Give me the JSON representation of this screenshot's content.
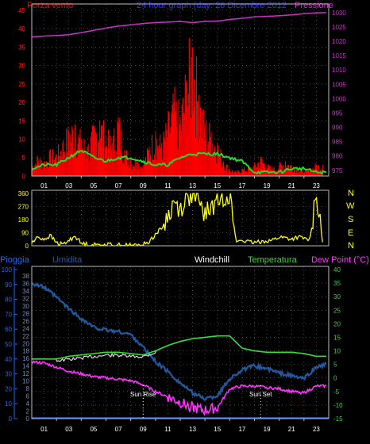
{
  "header": {
    "left_label": "Forza vento",
    "center_label": "24 hour graph (day: 26 Dicembre 2012",
    "right_label": "Pressione"
  },
  "wind_dir_letters": [
    "N",
    "W",
    "S",
    "E",
    "N"
  ],
  "bottom_header": {
    "pioggia": "Pioggia",
    "umidita": "Umidita",
    "windchill": "Windchill",
    "temperatura": "Temperatura",
    "dewpoint": "Dew Point (°C)"
  },
  "annotations": {
    "sunrise": "Sun Rise",
    "sunset": "Sun Set"
  },
  "colors": {
    "wind": "#ff0000",
    "wind_avg": "#22dd22",
    "pressure": "#cc33cc",
    "direction": "#ffff00",
    "humidity": "#225aa0",
    "temperature": "#33dd33",
    "windchill": "#ffffff",
    "dewpoint": "#ff33ff",
    "rain": "#2266ff"
  },
  "chart_data": [
    {
      "type": "bar",
      "title": "",
      "series": [
        {
          "name": "Forza vento",
          "x": [
            0,
            0.5,
            1,
            1.5,
            2,
            2.5,
            3,
            3.5,
            4,
            4.5,
            5,
            5.5,
            6,
            6.5,
            7,
            7.5,
            8,
            8.5,
            9,
            9.5,
            10,
            10.5,
            11,
            11.5,
            12,
            12.5,
            13,
            13.5,
            14,
            14.5,
            15,
            15.5,
            16,
            16.5,
            17,
            17.5,
            18,
            18.5,
            19,
            19.5,
            20,
            20.5,
            21,
            21.5,
            22,
            22.5,
            23,
            23.5
          ],
          "values": [
            3,
            5,
            4,
            6,
            6,
            9,
            12,
            14,
            10,
            8,
            12,
            15,
            11,
            9,
            16,
            7,
            5,
            4,
            3,
            8,
            12,
            9,
            14,
            20,
            16,
            26,
            35,
            22,
            14,
            12,
            9,
            4,
            2,
            1,
            2,
            2,
            3,
            5,
            3,
            2,
            3,
            4,
            3,
            2,
            1,
            2,
            3,
            3
          ]
        },
        {
          "name": "",
          "x": [
            0,
            1,
            2,
            3,
            4,
            5,
            6,
            7,
            8,
            9,
            10,
            11,
            12,
            13,
            14,
            15,
            16,
            17,
            18,
            19,
            20,
            21,
            22,
            23,
            23.8
          ],
          "values": [
            2,
            3,
            3,
            5,
            7,
            5,
            4,
            5,
            5,
            4,
            3,
            3,
            5,
            6,
            6,
            6,
            5,
            4,
            1,
            1,
            1,
            2,
            2,
            1,
            1
          ]
        }
      ],
      "ylim": [
        0,
        45
      ],
      "yticks_left": [
        0,
        5,
        10,
        15,
        20,
        25,
        30,
        35,
        40,
        45
      ]
    },
    {
      "type": "line",
      "title": "",
      "series": [
        {
          "name": "Pressione",
          "x": [
            0,
            1,
            2,
            3,
            4,
            5,
            6,
            7,
            8,
            9,
            10,
            11,
            12,
            13,
            14,
            15,
            16,
            17,
            18,
            19,
            20,
            21,
            22,
            23,
            23.8
          ],
          "values": [
            1021.5,
            1021.8,
            1022,
            1022.3,
            1023,
            1023.8,
            1024.6,
            1025.3,
            1025.7,
            1026.2,
            1026.5,
            1026.7,
            1026.9,
            1026.5,
            1026.9,
            1027,
            1027.6,
            1028,
            1028.5,
            1028.7,
            1028.9,
            1029.2,
            1029.6,
            1029.9,
            1030
          ]
        }
      ],
      "ylim": [
        973,
        1033
      ],
      "yticks_right": [
        975,
        980,
        985,
        990,
        995,
        1000,
        1005,
        1010,
        1015,
        1020,
        1025,
        1030
      ]
    },
    {
      "type": "scatter",
      "title": "",
      "series": [
        {
          "name": "",
          "x": [
            0,
            0.5,
            1,
            1.5,
            2,
            2.5,
            3,
            3.5,
            4,
            4.5,
            5,
            5.5,
            6,
            6.5,
            7,
            7.5,
            8,
            8.5,
            9,
            9.5,
            10,
            10.5,
            11,
            11.5,
            12,
            12.5,
            13,
            13.5,
            14,
            14.5,
            15,
            15.5,
            16,
            16.5,
            17,
            17.5,
            18,
            18.5,
            19,
            19.5,
            20,
            20.5,
            21,
            21.5,
            22,
            22.5,
            23,
            23.5
          ],
          "values": [
            20,
            60,
            45,
            70,
            20,
            10,
            35,
            70,
            15,
            10,
            5,
            8,
            6,
            10,
            5,
            4,
            3,
            5,
            8,
            30,
            80,
            120,
            200,
            300,
            250,
            330,
            350,
            290,
            220,
            260,
            310,
            340,
            360,
            30,
            40,
            25,
            20,
            30,
            35,
            40,
            60,
            55,
            45,
            60,
            50,
            40,
            360,
            30
          ]
        }
      ],
      "ylim": [
        0,
        360
      ],
      "yticks_left": [
        0,
        90,
        180,
        270,
        360
      ]
    },
    {
      "type": "line",
      "title": "",
      "series": [
        {
          "name": "Umidita",
          "x": [
            0,
            1,
            2,
            3,
            4,
            5,
            6,
            7,
            8,
            9,
            10,
            11,
            12,
            13,
            14,
            15,
            16,
            17,
            18,
            19,
            20,
            21,
            22,
            23,
            23.8
          ],
          "values": [
            95,
            92,
            85,
            77,
            70,
            64,
            62,
            61,
            59,
            50,
            40,
            33,
            25,
            18,
            14,
            16,
            28,
            34,
            37,
            35,
            32,
            30,
            28,
            36,
            38
          ]
        },
        {
          "name": "Temperatura",
          "x": [
            0,
            1,
            2,
            3,
            4,
            5,
            6,
            7,
            8,
            9,
            10,
            11,
            12,
            13,
            14,
            15,
            16,
            17,
            18,
            19,
            20,
            21,
            22,
            23,
            23.8
          ],
          "values": [
            7,
            7,
            7,
            8,
            8.5,
            9,
            9.5,
            9.5,
            9,
            8.5,
            10,
            12,
            13.5,
            14.5,
            15,
            15.5,
            15.5,
            11,
            10,
            9.5,
            9.5,
            9.5,
            9,
            8,
            8
          ]
        },
        {
          "name": "Windchill",
          "x": [
            0,
            1,
            2,
            3,
            4,
            5,
            6,
            7,
            8,
            9,
            10,
            11,
            12,
            13,
            14,
            15,
            16,
            17,
            18,
            19,
            20,
            21,
            22,
            23,
            23.8
          ],
          "values": [
            7,
            7,
            7,
            7.5,
            8,
            8.5,
            9,
            9,
            8.5,
            8.5,
            10,
            12,
            13.5,
            14.5,
            15,
            15.5,
            15.5,
            11,
            10,
            9.5,
            9.5,
            9.5,
            9,
            8,
            8
          ]
        },
        {
          "name": "Dew Point (°C)",
          "x": [
            0,
            1,
            2,
            3,
            4,
            5,
            6,
            7,
            8,
            9,
            10,
            11,
            12,
            13,
            14,
            15,
            16,
            17,
            18,
            19,
            20,
            21,
            22,
            23,
            23.8
          ],
          "values": [
            6,
            5.5,
            4,
            2.5,
            1.5,
            0.5,
            0,
            -0.5,
            -1,
            -2.5,
            -5,
            -7,
            -9,
            -11,
            -12,
            -11,
            -4,
            -3,
            -3,
            -3.5,
            -4,
            -5,
            -5.5,
            -3,
            -3
          ]
        },
        {
          "name": "Pioggia",
          "x": [
            0,
            23.8
          ],
          "values": [
            0,
            0
          ]
        }
      ],
      "xlabel": "",
      "ylim_left_rain": [
        0,
        100
      ],
      "yticks_left_rain": [
        0,
        10,
        20,
        30,
        40,
        50,
        60,
        70,
        80,
        90,
        100
      ],
      "ylim_left_hum": [
        0,
        38
      ],
      "yticks_left_hum": [
        0,
        2,
        4,
        6,
        8,
        10,
        12,
        14,
        16,
        18,
        20,
        22,
        24,
        26,
        28,
        30,
        32,
        34,
        36,
        38
      ],
      "ylim_right": [
        -15,
        40
      ],
      "yticks_right": [
        -15,
        -10,
        -5,
        0,
        5,
        10,
        15,
        20,
        25,
        30,
        35,
        40
      ],
      "sunrise_hour": 9,
      "sunset_hour": 18.5
    }
  ],
  "x_tick_labels": [
    "01",
    "03",
    "05",
    "07",
    "09",
    "11",
    "13",
    "15",
    "17",
    "19",
    "21",
    "23"
  ],
  "x_tick_labels_half": [
    "03",
    "05",
    "07",
    "09",
    "11",
    "13",
    "15",
    "17",
    "19",
    "21",
    "23"
  ]
}
